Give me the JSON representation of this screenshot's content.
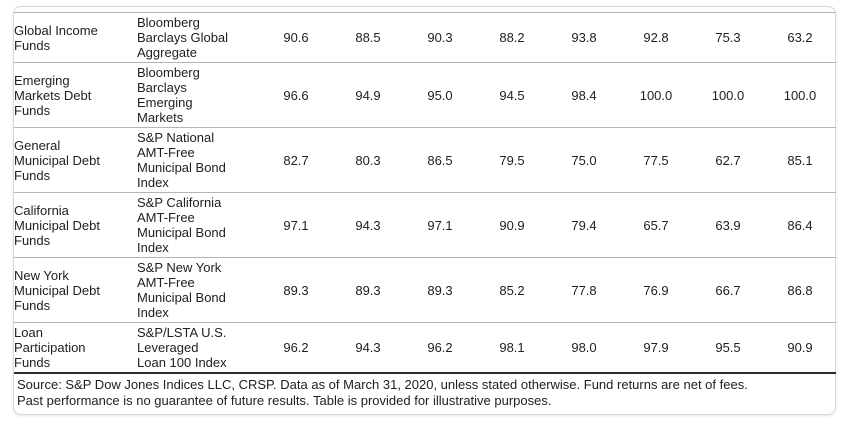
{
  "table": {
    "rows": [
      {
        "category": "Global Income\nFunds",
        "benchmark": "Bloomberg\nBarclays Global\nAggregate",
        "values": [
          "90.6",
          "88.5",
          "90.3",
          "88.2",
          "93.8",
          "92.8",
          "75.3",
          "63.2"
        ]
      },
      {
        "category": "Emerging\nMarkets Debt\nFunds",
        "benchmark": "Bloomberg\nBarclays\nEmerging\nMarkets",
        "values": [
          "96.6",
          "94.9",
          "95.0",
          "94.5",
          "98.4",
          "100.0",
          "100.0",
          "100.0"
        ]
      },
      {
        "category": "General\nMunicipal Debt\nFunds",
        "benchmark": "S&P National\nAMT-Free\nMunicipal Bond\nIndex",
        "values": [
          "82.7",
          "80.3",
          "86.5",
          "79.5",
          "75.0",
          "77.5",
          "62.7",
          "85.1"
        ]
      },
      {
        "category": "California\nMunicipal Debt\nFunds",
        "benchmark": "S&P California\nAMT-Free\nMunicipal Bond\nIndex",
        "values": [
          "97.1",
          "94.3",
          "97.1",
          "90.9",
          "79.4",
          "65.7",
          "63.9",
          "86.4"
        ]
      },
      {
        "category": "New York\nMunicipal Debt\nFunds",
        "benchmark": "S&P New York\nAMT-Free\nMunicipal Bond\nIndex",
        "values": [
          "89.3",
          "89.3",
          "89.3",
          "85.2",
          "77.8",
          "76.9",
          "66.7",
          "86.8"
        ]
      },
      {
        "category": "Loan\nParticipation\nFunds",
        "benchmark": "S&P/LSTA U.S.\nLeveraged\nLoan 100 Index",
        "values": [
          "96.2",
          "94.3",
          "96.2",
          "98.1",
          "98.0",
          "97.9",
          "95.5",
          "90.9"
        ]
      }
    ]
  },
  "footnote": {
    "text": "Source: S&P Dow Jones Indices LLC, CRSP. Data as of March 31, 2020, unless stated otherwise. Fund returns are net of fees.\nPast performance is no guarantee of future results. Table is provided for illustrative purposes."
  },
  "colors": {
    "text": "#212121",
    "row_divider": "#b5b5b5",
    "card_border": "#d8d8d8",
    "footnote_rule": "#2b2b2b",
    "background": "#ffffff"
  }
}
